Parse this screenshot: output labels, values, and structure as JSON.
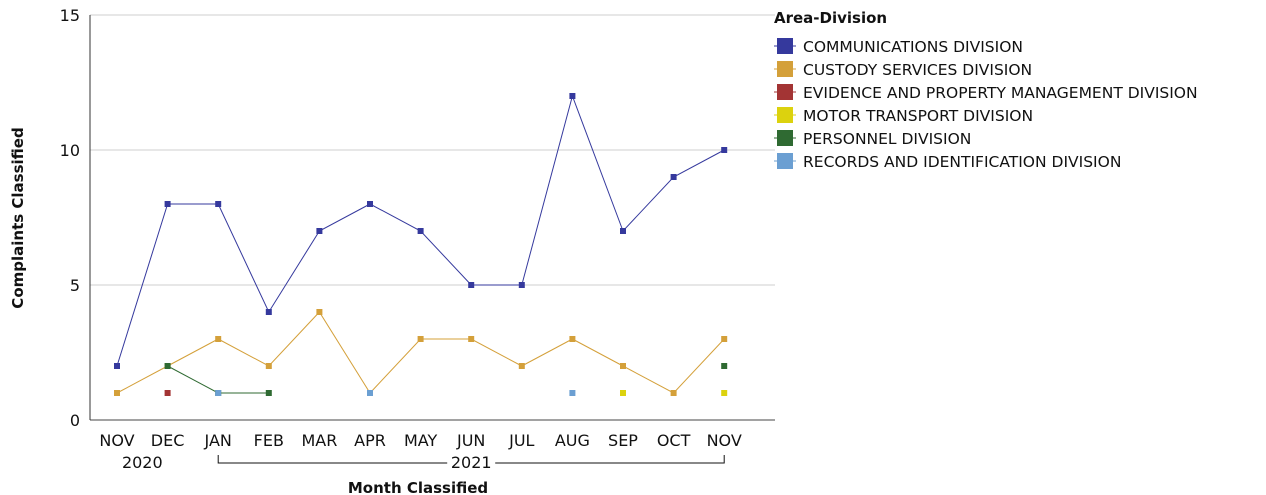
{
  "chart_data": {
    "type": "line",
    "xlabel": "Month Classified",
    "ylabel": "Complaints Classified",
    "ylim": [
      0,
      15
    ],
    "yticks": [
      0,
      5,
      10,
      15
    ],
    "grid": true,
    "categories": [
      "NOV",
      "DEC",
      "JAN",
      "FEB",
      "MAR",
      "APR",
      "MAY",
      "JUN",
      "JUL",
      "AUG",
      "SEP",
      "OCT",
      "NOV"
    ],
    "year_groups": [
      {
        "label": "2020",
        "from": 0,
        "to": 1
      },
      {
        "label": "2021",
        "from": 2,
        "to": 12
      }
    ],
    "legend": {
      "title": "Area-Division",
      "placement": "right"
    },
    "series": [
      {
        "name": "COMMUNICATIONS DIVISION",
        "color": "#35399d",
        "values": [
          2,
          8,
          8,
          4,
          7,
          8,
          7,
          5,
          5,
          12,
          7,
          9,
          10
        ]
      },
      {
        "name": "CUSTODY SERVICES DIVISION",
        "color": "#d4a03a",
        "values": [
          1,
          2,
          3,
          2,
          4,
          1,
          3,
          3,
          2,
          3,
          2,
          1,
          3
        ]
      },
      {
        "name": "EVIDENCE AND PROPERTY MANAGEMENT DIVISION",
        "color": "#a33434",
        "values": [
          null,
          1,
          null,
          null,
          null,
          null,
          null,
          null,
          null,
          null,
          null,
          null,
          null
        ]
      },
      {
        "name": "MOTOR TRANSPORT DIVISION",
        "color": "#dcd20e",
        "values": [
          null,
          null,
          null,
          null,
          null,
          null,
          null,
          null,
          null,
          null,
          1,
          null,
          1
        ]
      },
      {
        "name": "PERSONNEL DIVISION",
        "color": "#2f6a32",
        "values": [
          null,
          2,
          1,
          1,
          null,
          null,
          null,
          null,
          null,
          null,
          null,
          null,
          2
        ]
      },
      {
        "name": "RECORDS AND IDENTIFICATION DIVISION",
        "color": "#6b9fd2",
        "values": [
          null,
          null,
          1,
          null,
          null,
          1,
          null,
          null,
          null,
          1,
          null,
          null,
          null
        ]
      }
    ]
  }
}
